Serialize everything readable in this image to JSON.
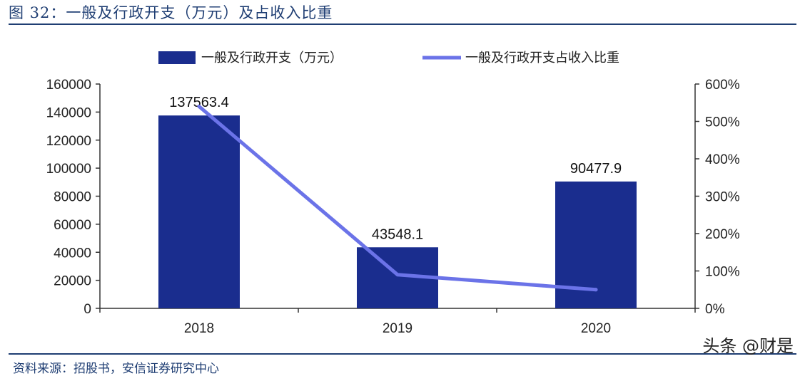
{
  "header": {
    "title": "图 32：一般及行政开支（万元）及占收入比重"
  },
  "footer": {
    "source": "资料来源：招股书，安信证券研究中心",
    "watermark": "头条 @财是"
  },
  "colors": {
    "bar": "#1a2d8e",
    "line": "#6b73e8",
    "axis": "#333333",
    "title": "#1f3e73"
  },
  "chart_data": {
    "type": "bar",
    "categories": [
      "2018",
      "2019",
      "2020"
    ],
    "series": [
      {
        "name": "一般及行政开支（万元）",
        "type": "bar",
        "axis": "left",
        "values": [
          137563.4,
          43548.1,
          90477.9
        ],
        "labels": [
          "137563.4",
          "43548.1",
          "90477.9"
        ]
      },
      {
        "name": "一般及行政开支占收入比重",
        "type": "line",
        "axis": "right",
        "values": [
          540,
          90,
          50
        ]
      }
    ],
    "y_left": {
      "range": [
        0,
        160000
      ],
      "ticks": [
        "0",
        "20000",
        "40000",
        "60000",
        "80000",
        "100000",
        "120000",
        "140000",
        "160000"
      ]
    },
    "y_right": {
      "range": [
        0,
        600
      ],
      "unit": "%",
      "ticks": [
        "0%",
        "100%",
        "200%",
        "300%",
        "400%",
        "500%",
        "600%"
      ]
    },
    "legend": "top",
    "grid": false
  }
}
